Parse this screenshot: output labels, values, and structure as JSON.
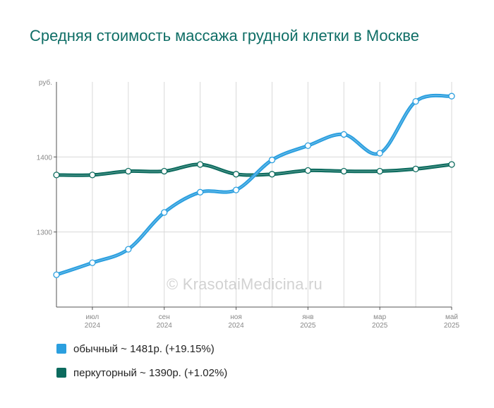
{
  "title": "Средняя стоимость массажа грудной клетки в Москве",
  "watermark": "© KrasotaiMedicina.ru",
  "colors": {
    "series1": "#2b9fdf",
    "series2": "#0c6b5e",
    "grid": "#d9d9d9",
    "axis": "#555555",
    "text": "#888888",
    "title": "#0f6e66"
  },
  "chart_data": {
    "type": "line",
    "ylabel": "руб.",
    "ylim": [
      1200,
      1500
    ],
    "yticks": [
      1300,
      1400
    ],
    "x_count": 12,
    "xticks": [
      {
        "index": 1,
        "line1": "июл",
        "line2": "2024"
      },
      {
        "index": 3,
        "line1": "сен",
        "line2": "2024"
      },
      {
        "index": 5,
        "line1": "ноя",
        "line2": "2024"
      },
      {
        "index": 7,
        "line1": "янв",
        "line2": "2025"
      },
      {
        "index": 9,
        "line1": "мар",
        "line2": "2025"
      },
      {
        "index": 11,
        "line1": "май",
        "line2": "2025"
      }
    ],
    "series": [
      {
        "name": "обычный",
        "color": "#2b9fdf",
        "values": [
          1243,
          1259,
          1277,
          1326,
          1353,
          1356,
          1396,
          1415,
          1430,
          1405,
          1474,
          1481
        ]
      },
      {
        "name": "перкуторный",
        "color": "#0c6b5e",
        "values": [
          1376,
          1376,
          1381,
          1381,
          1390,
          1377,
          1377,
          1382,
          1381,
          1381,
          1384,
          1390
        ]
      }
    ],
    "legend": [
      {
        "text": "обычный ~ 1481р. (+19.15%)",
        "color": "#2b9fdf"
      },
      {
        "text": "перкуторный ~ 1390р. (+1.02%)",
        "color": "#0c6b5e"
      }
    ]
  }
}
